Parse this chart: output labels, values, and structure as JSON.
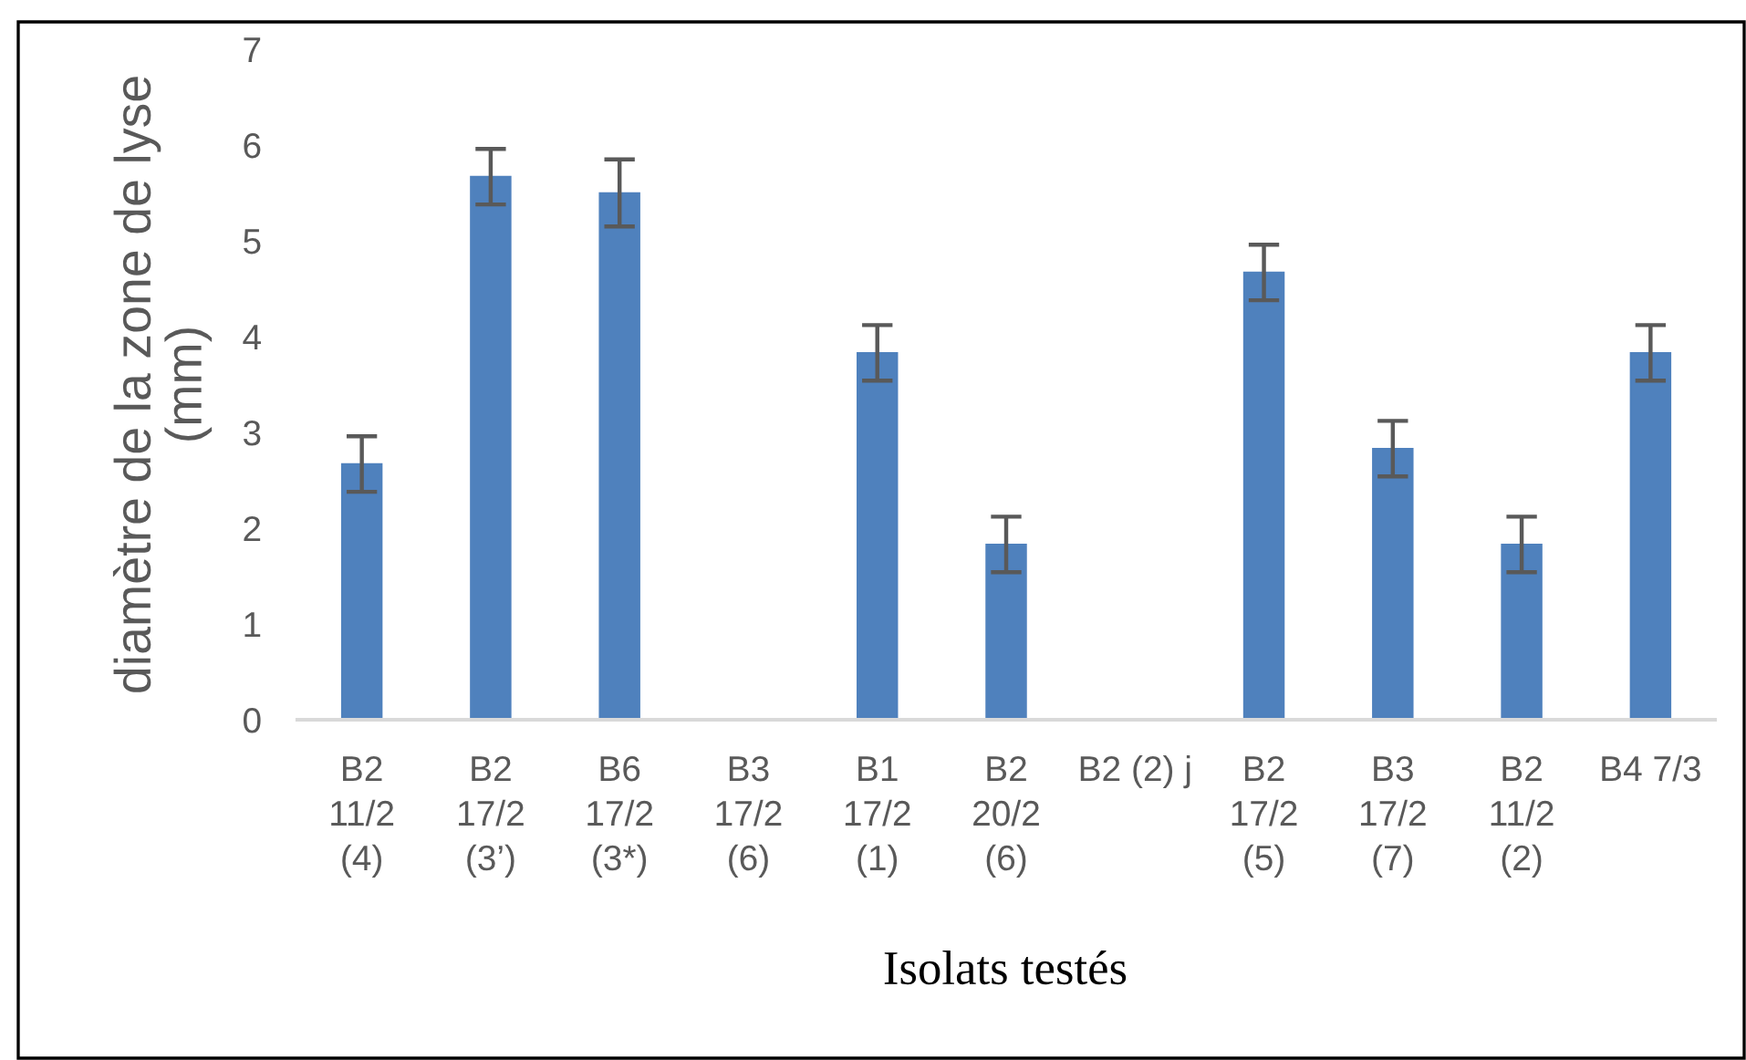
{
  "chart_data": {
    "type": "bar",
    "categories": [
      "B2\n11/2\n(4)",
      "B2\n17/2\n(3’)",
      "B6\n17/2\n(3*)",
      "B3\n17/2\n(6)",
      "B1\n17/2\n(1)",
      "B2\n20/2\n(6)",
      "B2 (2) j",
      "B2\n17/2\n(5)",
      "B3\n17/2\n(7)",
      "B2\n11/2\n(2)",
      "B4 7/3"
    ],
    "values": [
      2.67,
      5.67,
      5.5,
      0,
      3.83,
      1.83,
      0,
      4.67,
      2.83,
      1.83,
      3.83
    ],
    "errors": [
      0.29,
      0.29,
      0.35,
      null,
      0.29,
      0.29,
      null,
      0.29,
      0.29,
      0.29,
      0.29
    ],
    "color": "#4f81bd",
    "ylim": [
      0,
      7
    ],
    "yticks": [
      0,
      1,
      2,
      3,
      4,
      5,
      6,
      7
    ],
    "ylabel": "diamètre de la zone de lyse\n(mm)",
    "xlabel": "Isolats testés",
    "grid": false,
    "legend": false
  }
}
